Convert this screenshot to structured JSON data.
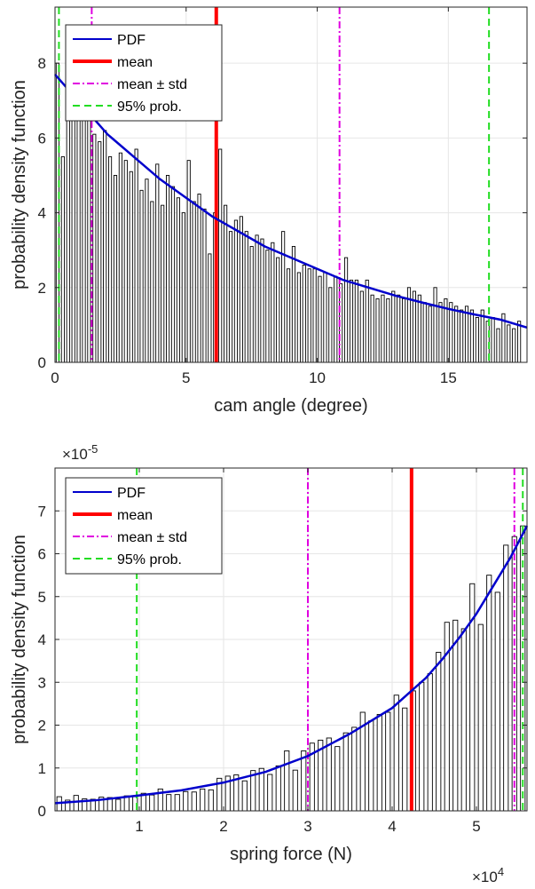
{
  "chart_data": [
    {
      "type": "bar",
      "xlabel": "cam angle (degree)",
      "ylabel": "probability density function",
      "xlim": [
        0,
        18
      ],
      "ylim": [
        0,
        9.5
      ],
      "xticks": [
        0,
        5,
        10,
        15
      ],
      "xtick_labels": [
        "0",
        "5",
        "10",
        "15"
      ],
      "yticks": [
        0,
        2,
        4,
        6,
        8
      ],
      "ytick_labels": [
        "0",
        "2",
        "4",
        "6",
        "8"
      ],
      "exponent_label": "",
      "grid": true,
      "legend_position": "top-left",
      "bin_width": 0.2,
      "histogram_x": [
        0.1,
        0.3,
        0.5,
        0.7,
        0.9,
        1.1,
        1.3,
        1.5,
        1.7,
        1.9,
        2.1,
        2.3,
        2.5,
        2.7,
        2.9,
        3.1,
        3.3,
        3.5,
        3.7,
        3.9,
        4.1,
        4.3,
        4.5,
        4.7,
        4.9,
        5.1,
        5.3,
        5.5,
        5.7,
        5.9,
        6.1,
        6.3,
        6.5,
        6.7,
        6.9,
        7.1,
        7.3,
        7.5,
        7.7,
        7.9,
        8.1,
        8.3,
        8.5,
        8.7,
        8.9,
        9.1,
        9.3,
        9.5,
        9.7,
        9.9,
        10.1,
        10.3,
        10.5,
        10.7,
        10.9,
        11.1,
        11.3,
        11.5,
        11.7,
        11.9,
        12.1,
        12.3,
        12.5,
        12.7,
        12.9,
        13.1,
        13.3,
        13.5,
        13.7,
        13.9,
        14.1,
        14.3,
        14.5,
        14.7,
        14.9,
        15.1,
        15.3,
        15.5,
        15.7,
        15.9,
        16.1,
        16.3,
        16.5,
        16.7,
        16.9,
        17.1,
        17.3,
        17.5,
        17.7
      ],
      "histogram_values": [
        8.0,
        5.5,
        6.9,
        7.2,
        6.6,
        7.0,
        6.5,
        6.1,
        5.9,
        6.2,
        5.5,
        5.0,
        5.6,
        5.4,
        5.1,
        5.7,
        4.6,
        4.9,
        4.3,
        5.3,
        4.2,
        5.0,
        4.7,
        4.4,
        4.0,
        5.4,
        4.3,
        4.5,
        4.1,
        2.9,
        4.0,
        5.7,
        4.2,
        3.5,
        3.8,
        3.9,
        3.5,
        3.1,
        3.4,
        3.3,
        3.0,
        3.2,
        2.8,
        3.5,
        2.5,
        3.1,
        2.4,
        2.6,
        2.5,
        2.5,
        2.3,
        2.4,
        2.0,
        2.3,
        2.1,
        2.8,
        2.2,
        2.2,
        1.9,
        2.2,
        1.8,
        1.7,
        1.8,
        1.7,
        1.9,
        1.8,
        1.7,
        2.0,
        1.9,
        1.8,
        1.6,
        1.5,
        2.0,
        1.6,
        1.7,
        1.6,
        1.5,
        1.4,
        1.5,
        1.4,
        1.2,
        1.4,
        1.1,
        1.2,
        0.9,
        1.3,
        1.0,
        0.9,
        1.1
      ],
      "pdf_curve": {
        "name": "PDF",
        "color": "#0000cc",
        "x": [
          0,
          1,
          2,
          3,
          4,
          5,
          6,
          7,
          8,
          9,
          10,
          11,
          12,
          13,
          14,
          15,
          16,
          17,
          18
        ],
        "y": [
          7.7,
          6.9,
          6.1,
          5.5,
          4.9,
          4.4,
          3.9,
          3.5,
          3.1,
          2.8,
          2.5,
          2.2,
          1.99,
          1.78,
          1.6,
          1.43,
          1.28,
          1.14,
          0.93
        ]
      },
      "vertical_lines": [
        {
          "name": "mean",
          "x": 6.15,
          "color": "#ff0000",
          "style": "solid",
          "legend": true
        },
        {
          "name": "mean ± std",
          "x": 1.4,
          "color": "#e000e0",
          "style": "dashdot",
          "legend": true
        },
        {
          "name": "mean ± std",
          "x": 10.85,
          "color": "#e000e0",
          "style": "dashdot",
          "legend": false
        },
        {
          "name": "95% prob.",
          "x": 0.15,
          "color": "#22dd22",
          "style": "dashed",
          "legend": true
        },
        {
          "name": "95% prob.",
          "x": 16.55,
          "color": "#22dd22",
          "style": "dashed",
          "legend": false
        }
      ],
      "legend": [
        {
          "label": "PDF",
          "color": "#0000cc",
          "style": "solid",
          "width": 2
        },
        {
          "label": "mean",
          "color": "#ff0000",
          "style": "solid",
          "width": 4
        },
        {
          "label": "mean ± std",
          "color": "#e000e0",
          "style": "dashdot",
          "width": 2
        },
        {
          "label": "95% prob.",
          "color": "#22dd22",
          "style": "dashed",
          "width": 2
        }
      ]
    },
    {
      "type": "bar",
      "xlabel": "spring force (N)",
      "ylabel": "probability density function",
      "xlim": [
        0,
        56000
      ],
      "ylim": [
        0,
        8e-05
      ],
      "xticks": [
        10000,
        20000,
        30000,
        40000,
        50000
      ],
      "xtick_labels": [
        "1",
        "2",
        "3",
        "4",
        "5"
      ],
      "yticks": [
        0,
        1e-05,
        2e-05,
        3e-05,
        4e-05,
        5e-05,
        6e-05,
        7e-05
      ],
      "ytick_labels": [
        "0",
        "1",
        "2",
        "3",
        "4",
        "5",
        "6",
        "7"
      ],
      "y_exponent_label": "×10",
      "y_exponent_power": "-5",
      "x_exponent_label": "×10",
      "x_exponent_power": "4",
      "grid": true,
      "legend_position": "top-left",
      "bin_width": 1000,
      "histogram_x": [
        500,
        1500,
        2500,
        3500,
        4500,
        5500,
        6500,
        7500,
        8500,
        9500,
        10500,
        11500,
        12500,
        13500,
        14500,
        15500,
        16500,
        17500,
        18500,
        19500,
        20500,
        21500,
        22500,
        23500,
        24500,
        25500,
        26500,
        27500,
        28500,
        29500,
        30500,
        31500,
        32500,
        33500,
        34500,
        35500,
        36500,
        37500,
        38500,
        39500,
        40500,
        41500,
        42500,
        43500,
        44500,
        45500,
        46500,
        47500,
        48500,
        49500,
        50500,
        51500,
        52500,
        53500,
        54500,
        55500
      ],
      "histogram_values": [
        3.3e-06,
        2.5e-06,
        3.6e-06,
        2.8e-06,
        2.7e-06,
        3.2e-06,
        3.1e-06,
        2.7e-06,
        3.5e-06,
        3.3e-06,
        4.1e-06,
        3.7e-06,
        5.1e-06,
        3.8e-06,
        3.8e-06,
        4.5e-06,
        4.4e-06,
        5.1e-06,
        4.9e-06,
        7.6e-06,
        8.1e-06,
        8.4e-06,
        7e-06,
        9.4e-06,
        9.9e-06,
        8.5e-06,
        1.05e-05,
        1.4e-05,
        9.5e-06,
        1.4e-05,
        1.58e-05,
        1.65e-05,
        1.7e-05,
        1.5e-05,
        1.82e-05,
        1.95e-05,
        2.3e-05,
        2.1e-05,
        2.25e-05,
        2.3e-05,
        2.7e-05,
        2.4e-05,
        2.8e-05,
        3e-05,
        3.2e-05,
        3.7e-05,
        4.4e-05,
        4.45e-05,
        4.25e-05,
        5.3e-05,
        4.35e-05,
        5.5e-05,
        5.1e-05,
        6.2e-05,
        6.4e-05,
        6.65e-05
      ],
      "pdf_curve": {
        "name": "PDF",
        "color": "#0000cc",
        "x": [
          0,
          5000,
          10000,
          15000,
          20000,
          25000,
          30000,
          35000,
          40000,
          42000,
          44000,
          46000,
          48000,
          50000,
          52000,
          54000,
          56000
        ],
        "y": [
          1.8e-06,
          2.5e-06,
          3.6e-06,
          4.8e-06,
          6.6e-06,
          9.1e-06,
          1.28e-05,
          1.8e-05,
          2.4e-05,
          2.75e-05,
          3.1e-05,
          3.55e-05,
          4.05e-05,
          4.6e-05,
          5.25e-05,
          5.9e-05,
          6.65e-05
        ]
      },
      "vertical_lines": [
        {
          "name": "mean",
          "x": 42300,
          "color": "#ff0000",
          "style": "solid",
          "legend": true
        },
        {
          "name": "mean ± std",
          "x": 30000,
          "color": "#e000e0",
          "style": "dashdot",
          "legend": true
        },
        {
          "name": "mean ± std",
          "x": 54500,
          "color": "#e000e0",
          "style": "dashdot",
          "legend": false
        },
        {
          "name": "95% prob.",
          "x": 9700,
          "color": "#22dd22",
          "style": "dashed",
          "legend": true
        },
        {
          "name": "95% prob.",
          "x": 55500,
          "color": "#22dd22",
          "style": "dashed",
          "legend": false
        }
      ],
      "legend": [
        {
          "label": "PDF",
          "color": "#0000cc",
          "style": "solid",
          "width": 2
        },
        {
          "label": "mean",
          "color": "#ff0000",
          "style": "solid",
          "width": 4
        },
        {
          "label": "mean ± std",
          "color": "#e000e0",
          "style": "dashdot",
          "width": 2
        },
        {
          "label": "95% prob.",
          "color": "#22dd22",
          "style": "dashed",
          "width": 2
        }
      ]
    }
  ]
}
